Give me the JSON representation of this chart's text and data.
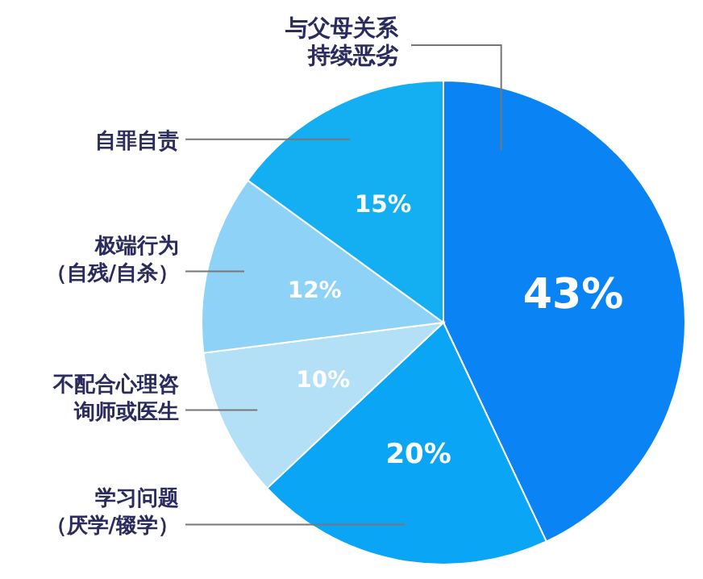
{
  "chart_data": {
    "type": "pie",
    "categories": [
      "与父母关系持续恶劣",
      "学习问题（厌学/辍学）",
      "不配合心理咨询师或医生",
      "极端行为（自残/自杀）",
      "自罪自责"
    ],
    "values": [
      43,
      20,
      10,
      12,
      15
    ],
    "colors": [
      "#0a84f5",
      "#0aa6f5",
      "#b3e0f7",
      "#8fd2f7",
      "#14aef2"
    ],
    "value_labels": [
      "43%",
      "20%",
      "10%",
      "12%",
      "15%"
    ],
    "legend": false
  }
}
